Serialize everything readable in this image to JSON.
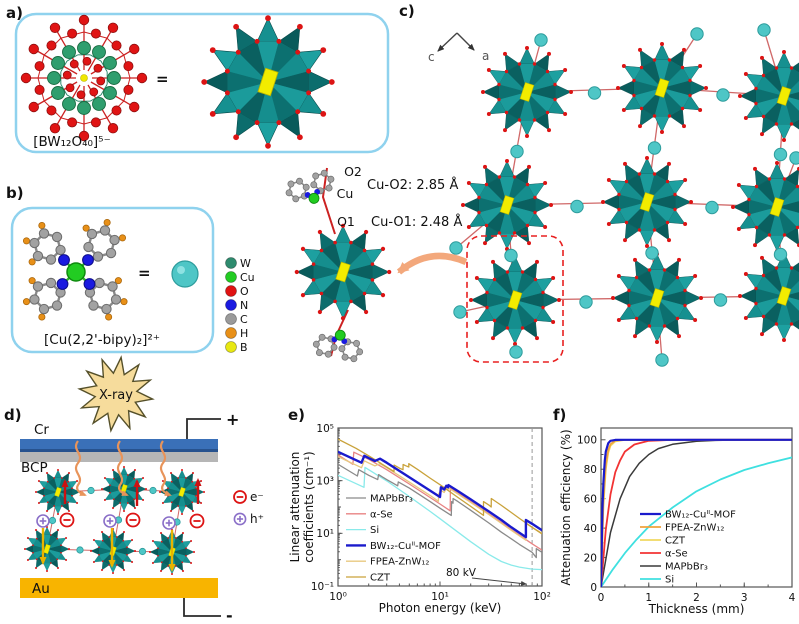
{
  "panel_a": {
    "label": "a)",
    "formula": "[BW₁₂O₄₀]⁵⁻",
    "equals": "="
  },
  "panel_b": {
    "label": "b)",
    "formula": "[Cu(2,2'-bipy)₂]²⁺",
    "equals": "=",
    "atom_legend": [
      {
        "symbol": "W",
        "color": "#2e8b6e"
      },
      {
        "symbol": "Cu",
        "color": "#22cc22"
      },
      {
        "symbol": "O",
        "color": "#e01212"
      },
      {
        "symbol": "N",
        "color": "#1a1ae0"
      },
      {
        "symbol": "C",
        "color": "#9a9a9a"
      },
      {
        "symbol": "H",
        "color": "#e89018"
      },
      {
        "symbol": "B",
        "color": "#e8e812"
      }
    ]
  },
  "panel_c": {
    "label": "c)",
    "axis_left": "c",
    "axis_right": "a",
    "bond_labels": {
      "o2": "O2",
      "cu": "Cu",
      "o1": "O1",
      "cu_o2_distance": "Cu-O2: 2.85 Å",
      "cu_o1_distance": "Cu-O1: 2.48 Å"
    }
  },
  "panel_d": {
    "label": "d)",
    "xray": "X-ray",
    "layer_cr": "Cr",
    "layer_bcp": "BCP",
    "layer_au": "Au",
    "electrode_positive": "+",
    "electrode_negative": "-",
    "legend_electron": "e⁻",
    "legend_hole": "h⁺",
    "electron_color": "#dd1414",
    "hole_color": "#8a6fc8"
  },
  "panel_e": {
    "label": "e)"
  },
  "panel_f": {
    "label": "f)"
  },
  "chart_data": [
    {
      "type": "line",
      "panel": "e",
      "xscale": "log",
      "yscale": "log",
      "xlabel": "Photon energy (keV)",
      "ylabel": "Linear attenuation coefficients (cm⁻¹)",
      "ylabel_lines": [
        "Linear attenuation",
        "coefficients (cm⁻¹)"
      ],
      "xlim": [
        1,
        100
      ],
      "ylim": [
        0.1,
        100000
      ],
      "x_ticks": [
        {
          "v": 1,
          "label": "10⁰"
        },
        {
          "v": 10,
          "label": "10¹"
        },
        {
          "v": 100,
          "label": "10²"
        }
      ],
      "y_ticks": [
        {
          "v": 0.1,
          "label": "10⁻¹"
        },
        {
          "v": 10,
          "label": "10¹"
        },
        {
          "v": 1000,
          "label": "10³"
        },
        {
          "v": 100000,
          "label": "10⁵"
        }
      ],
      "annotation": {
        "text": "80 kV",
        "x": 80
      },
      "legend_position": "lower-left",
      "series": [
        {
          "name": "MAPbBr₃",
          "color": "#8a8a8a",
          "width": 1.3,
          "z": 1,
          "points": [
            [
              1,
              4200
            ],
            [
              1.55,
              1500
            ],
            [
              1.6,
              2600
            ],
            [
              2,
              1600
            ],
            [
              2.45,
              1100
            ],
            [
              2.5,
              1700
            ],
            [
              3,
              1100
            ],
            [
              3.85,
              640
            ],
            [
              3.9,
              900
            ],
            [
              5,
              520
            ],
            [
              8,
              160
            ],
            [
              10,
              90
            ],
            [
              12.9,
              48
            ],
            [
              13,
              160
            ],
            [
              13.4,
              140
            ],
            [
              13.45,
              210
            ],
            [
              15,
              160
            ],
            [
              20,
              75
            ],
            [
              30,
              25
            ],
            [
              40,
              11
            ],
            [
              50,
              6.2
            ],
            [
              60,
              3.8
            ],
            [
              80,
              1.9
            ],
            [
              87.9,
              1.2
            ],
            [
              88,
              2.6
            ],
            [
              100,
              1.9
            ]
          ]
        },
        {
          "name": "α-Se",
          "color": "#e88383",
          "width": 1.3,
          "z": 2,
          "points": [
            [
              1,
              9500
            ],
            [
              1.4,
              4200
            ],
            [
              1.43,
              12000
            ],
            [
              2,
              6500
            ],
            [
              3,
              2600
            ],
            [
              5,
              750
            ],
            [
              8,
              230
            ],
            [
              10,
              130
            ],
            [
              12.6,
              72
            ],
            [
              12.66,
              520
            ],
            [
              15,
              340
            ],
            [
              20,
              160
            ],
            [
              30,
              55
            ],
            [
              40,
              26
            ],
            [
              50,
              14
            ],
            [
              60,
              8.5
            ],
            [
              80,
              4.0
            ],
            [
              100,
              2.3
            ]
          ]
        },
        {
          "name": "Si",
          "color": "#8aeaea",
          "width": 1.3,
          "z": 0,
          "points": [
            [
              1,
              1600
            ],
            [
              1.8,
              560
            ],
            [
              1.84,
              3200
            ],
            [
              2,
              2600
            ],
            [
              3,
              980
            ],
            [
              5,
              250
            ],
            [
              8,
              68
            ],
            [
              10,
              36
            ],
            [
              15,
              11
            ],
            [
              20,
              4.8
            ],
            [
              30,
              1.6
            ],
            [
              40,
              0.85
            ],
            [
              50,
              0.62
            ],
            [
              60,
              0.52
            ],
            [
              80,
              0.44
            ],
            [
              100,
              0.42
            ]
          ]
        },
        {
          "name": "BW₁₂-Cuᴵᴵ-MOF",
          "color": "#1a1acc",
          "width": 2.4,
          "z": 5,
          "points": [
            [
              1,
              12500
            ],
            [
              1.7,
              4800
            ],
            [
              1.81,
              8800
            ],
            [
              2,
              7200
            ],
            [
              2.3,
              5600
            ],
            [
              2.58,
              6800
            ],
            [
              3,
              4800
            ],
            [
              5,
              1350
            ],
            [
              8,
              420
            ],
            [
              10,
              240
            ],
            [
              10.2,
              560
            ],
            [
              11,
              460
            ],
            [
              11.54,
              640
            ],
            [
              12,
              560
            ],
            [
              12.1,
              680
            ],
            [
              15,
              400
            ],
            [
              20,
              195
            ],
            [
              30,
              68
            ],
            [
              40,
              32
            ],
            [
              50,
              17
            ],
            [
              60,
              10.5
            ],
            [
              69.5,
              7.2
            ],
            [
              69.6,
              32
            ],
            [
              80,
              23
            ],
            [
              100,
              13
            ]
          ]
        },
        {
          "name": "FPEA-ZnW₁₂",
          "color": "#e8c87f",
          "width": 1.3,
          "z": 3,
          "points": [
            [
              1,
              8200
            ],
            [
              1.7,
              3100
            ],
            [
              1.81,
              5700
            ],
            [
              2,
              4700
            ],
            [
              2.3,
              3650
            ],
            [
              2.58,
              4400
            ],
            [
              3,
              3100
            ],
            [
              5,
              880
            ],
            [
              8,
              275
            ],
            [
              9.65,
              165
            ],
            [
              9.66,
              310
            ],
            [
              10.2,
              430
            ],
            [
              11,
              360
            ],
            [
              11.54,
              500
            ],
            [
              12,
              440
            ],
            [
              12.1,
              530
            ],
            [
              15,
              310
            ],
            [
              20,
              150
            ],
            [
              30,
              52
            ],
            [
              40,
              24
            ],
            [
              50,
              13
            ],
            [
              60,
              8
            ],
            [
              69.5,
              5.5
            ],
            [
              69.6,
              24
            ],
            [
              80,
              17
            ],
            [
              100,
              10
            ]
          ]
        },
        {
          "name": "CZT",
          "color": "#c9a23a",
          "width": 1.3,
          "z": 4,
          "points": [
            [
              1,
              38000
            ],
            [
              1.5,
              17000
            ],
            [
              2,
              8800
            ],
            [
              3,
              3300
            ],
            [
              3.54,
              2200
            ],
            [
              3.55,
              3900
            ],
            [
              4,
              3000
            ],
            [
              4.34,
              2600
            ],
            [
              4.35,
              4100
            ],
            [
              4.6,
              3700
            ],
            [
              4.94,
              3300
            ],
            [
              4.95,
              4400
            ],
            [
              6,
              2700
            ],
            [
              8,
              1250
            ],
            [
              10,
              700
            ],
            [
              15,
              230
            ],
            [
              20,
              105
            ],
            [
              26.7,
              48
            ],
            [
              26.72,
              160
            ],
            [
              30,
              120
            ],
            [
              31.8,
              100
            ],
            [
              31.82,
              210
            ],
            [
              40,
              115
            ],
            [
              50,
              62
            ],
            [
              60,
              37
            ],
            [
              80,
              17
            ],
            [
              100,
              9.5
            ]
          ]
        }
      ]
    },
    {
      "type": "line",
      "panel": "f",
      "xscale": "linear",
      "yscale": "linear",
      "xlabel": "Thickness (mm)",
      "ylabel": "Attenuation efficiency (%)",
      "xlim": [
        0,
        4
      ],
      "ylim": [
        0,
        108
      ],
      "x_ticks": [
        {
          "v": 0,
          "label": "0"
        },
        {
          "v": 1,
          "label": "1"
        },
        {
          "v": 2,
          "label": "2"
        },
        {
          "v": 3,
          "label": "3"
        },
        {
          "v": 4,
          "label": "4"
        }
      ],
      "y_ticks": [
        {
          "v": 0,
          "label": "0"
        },
        {
          "v": 20,
          "label": "20"
        },
        {
          "v": 40,
          "label": "40"
        },
        {
          "v": 60,
          "label": "60"
        },
        {
          "v": 80,
          "label": "80"
        },
        {
          "v": 100,
          "label": "100"
        }
      ],
      "legend_position": "center-right",
      "series": [
        {
          "name": "BW₁₂-Cuᴵᴵ-MOF",
          "color": "#1a1acc",
          "width": 2.2,
          "z": 5,
          "points": [
            [
              0,
              0
            ],
            [
              0.03,
              53
            ],
            [
              0.05,
              71
            ],
            [
              0.08,
              86
            ],
            [
              0.1,
              92
            ],
            [
              0.15,
              97.6
            ],
            [
              0.2,
              99.3
            ],
            [
              0.3,
              99.9
            ],
            [
              0.5,
              100
            ],
            [
              4,
              100
            ]
          ]
        },
        {
          "name": "FPEA-ZnW₁₂",
          "color": "#f0a23c",
          "width": 1.8,
          "z": 4,
          "points": [
            [
              0,
              0
            ],
            [
              0.05,
              59
            ],
            [
              0.1,
              83
            ],
            [
              0.15,
              93
            ],
            [
              0.2,
              97
            ],
            [
              0.3,
              99.5
            ],
            [
              0.5,
              99.95
            ],
            [
              4,
              100
            ]
          ]
        },
        {
          "name": "CZT",
          "color": "#f0d860",
          "width": 1.8,
          "z": 3,
          "points": [
            [
              0,
              0
            ],
            [
              0.05,
              55
            ],
            [
              0.1,
              80
            ],
            [
              0.15,
              91
            ],
            [
              0.2,
              96
            ],
            [
              0.3,
              99
            ],
            [
              0.5,
              99.9
            ],
            [
              4,
              100
            ]
          ]
        },
        {
          "name": "α-Se",
          "color": "#f23333",
          "width": 1.8,
          "z": 2,
          "points": [
            [
              0,
              0
            ],
            [
              0.1,
              39
            ],
            [
              0.2,
              63
            ],
            [
              0.3,
              78
            ],
            [
              0.4,
              86
            ],
            [
              0.5,
              92
            ],
            [
              0.7,
              96.8
            ],
            [
              1,
              99.3
            ],
            [
              1.5,
              99.9
            ],
            [
              2,
              100
            ],
            [
              4,
              100
            ]
          ]
        },
        {
          "name": "MAPbBr₃",
          "color": "#3a3a3a",
          "width": 1.5,
          "z": 1,
          "points": [
            [
              0,
              0
            ],
            [
              0.2,
              37
            ],
            [
              0.4,
              60
            ],
            [
              0.6,
              75
            ],
            [
              0.8,
              84
            ],
            [
              1,
              90
            ],
            [
              1.2,
              94
            ],
            [
              1.5,
              96.9
            ],
            [
              2,
              99
            ],
            [
              2.4,
              99.6
            ],
            [
              3,
              99.9
            ],
            [
              4,
              100
            ]
          ]
        },
        {
          "name": "Si",
          "color": "#3fe0e0",
          "width": 1.8,
          "z": 0,
          "points": [
            [
              0,
              0
            ],
            [
              0.25,
              12
            ],
            [
              0.5,
              23
            ],
            [
              0.75,
              32.5
            ],
            [
              1,
              41
            ],
            [
              1.5,
              54
            ],
            [
              2,
              65
            ],
            [
              2.5,
              73
            ],
            [
              3,
              79.5
            ],
            [
              3.5,
              84
            ],
            [
              4,
              88
            ]
          ]
        }
      ]
    }
  ]
}
